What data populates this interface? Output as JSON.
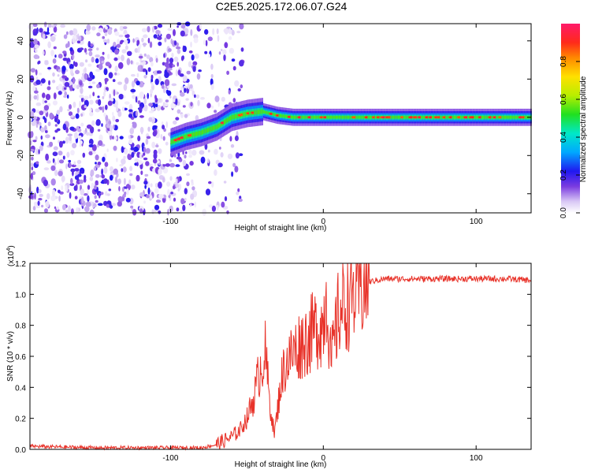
{
  "figure": {
    "title": "C2E5.2025.172.06.07.G24"
  },
  "chart_data": [
    {
      "type": "heatmap",
      "title": "C2E5.2025.172.06.07.G24",
      "xlabel": "Height of straight line (km)",
      "ylabel": "Frequency (Hz)",
      "xlim": [
        -192,
        136
      ],
      "ylim": [
        -50,
        49
      ],
      "xticks": [
        -100,
        0,
        100
      ],
      "xtick_labels": [
        "-100",
        "0",
        "100"
      ],
      "yticks": [
        -40,
        -20,
        0,
        20,
        40
      ],
      "ytick_labels": [
        "-40",
        "-20",
        "0",
        "20",
        "40"
      ],
      "colorbar": {
        "label": "Normalized spectral amplitude",
        "range": [
          0,
          1
        ],
        "ticks": [
          0.0,
          0.2,
          0.4,
          0.6,
          0.8
        ],
        "tick_labels": [
          "0.0",
          "0.2",
          "0.4",
          "0.6",
          "0.8"
        ]
      },
      "noise_region_x": [
        -192,
        -65
      ],
      "ridge": {
        "x": [
          -100,
          -90,
          -80,
          -70,
          -60,
          -50,
          -40,
          -30,
          -20,
          -10,
          0,
          10,
          20,
          40,
          60,
          80,
          100,
          120,
          136
        ],
        "frequency": [
          -13,
          -10,
          -8,
          -5,
          0,
          2,
          3,
          1,
          0,
          0,
          0,
          0,
          0,
          0,
          0,
          0,
          0,
          0,
          0
        ]
      },
      "grid": false,
      "legend": "none"
    },
    {
      "type": "line",
      "xlabel": "Height of straight line (km)",
      "ylabel": "SNR (10 * v/v)",
      "y_multiplier_label": "(x10",
      "y_multiplier_exp": "4",
      "y_multiplier_close": ")",
      "xlim": [
        -192,
        136
      ],
      "ylim": [
        0,
        1.2
      ],
      "xticks": [
        -100,
        0,
        100
      ],
      "xtick_labels": [
        "-100",
        "0",
        "100"
      ],
      "yticks": [
        0.0,
        0.2,
        0.4,
        0.6,
        0.8,
        1.0,
        1.2
      ],
      "ytick_labels": [
        "0.0",
        "0.2",
        "0.4",
        "0.6",
        "0.8",
        "1.0",
        "1.2"
      ],
      "color": "#e8332a",
      "series": [
        {
          "x": [
            -192,
            -150,
            -100,
            -80,
            -70,
            -60,
            -55,
            -50,
            -45,
            -42,
            -38,
            -35,
            -32,
            -30,
            -28,
            -25,
            -20,
            -15,
            -10,
            -5,
            0,
            2,
            5,
            10,
            15,
            20,
            25,
            30,
            40,
            60,
            80,
            100,
            120,
            136
          ],
          "y": [
            0.02,
            0.01,
            0.01,
            0.01,
            0.03,
            0.08,
            0.12,
            0.2,
            0.35,
            0.5,
            0.62,
            0.3,
            0.1,
            0.25,
            0.42,
            0.55,
            0.62,
            0.68,
            0.72,
            0.78,
            0.8,
            1.05,
            0.55,
            0.88,
            0.95,
            1.0,
            1.05,
            1.08,
            1.1,
            1.1,
            1.1,
            1.1,
            1.1,
            1.09
          ]
        }
      ],
      "grid": false,
      "legend": "none"
    }
  ]
}
